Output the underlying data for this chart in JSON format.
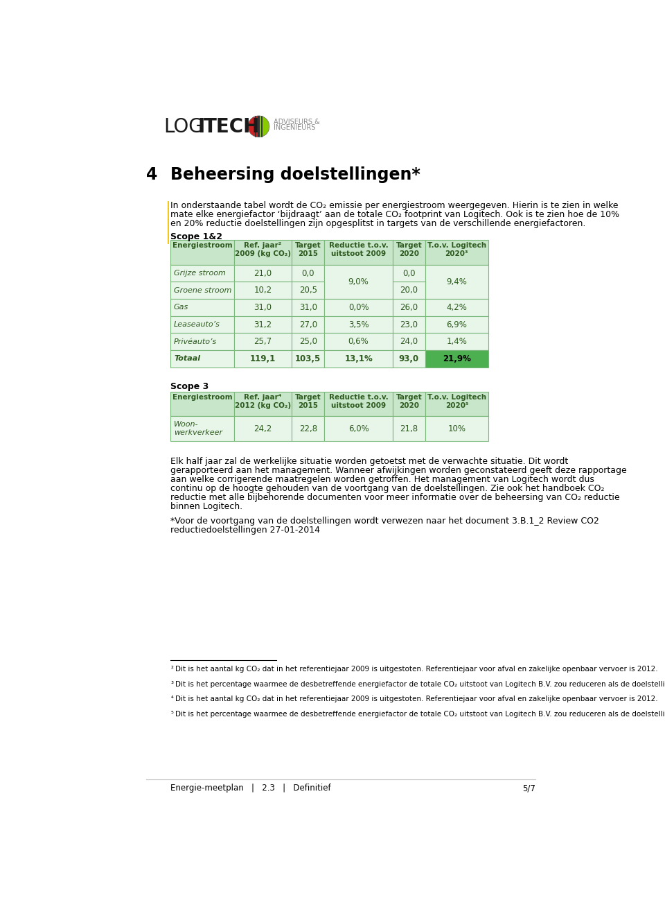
{
  "scope12_header": [
    "Energiestroom",
    "Ref. jaar²\n2009 (kg CO₂)",
    "Target\n2015",
    "Reductie t.o.v.\nuitstoot 2009",
    "Target\n2020",
    "T.o.v. Logitech\n2020³"
  ],
  "scope3_header": [
    "Energiestroom",
    "Ref. jaar⁴\n2012 (kg CO₂)",
    "Target\n2015",
    "Reductie t.o.v.\nuitstoot 2009",
    "Target\n2020",
    "T.o.v. Logitech\n2020⁵"
  ],
  "header_bg": "#c8e6c9",
  "cell_bg": "#e8f5e9",
  "totaal_last_cell_bg": "#4caf50",
  "border_color": "#7ab87a",
  "text_color": "#2d5a1e",
  "yellow_bar": "#f5c518",
  "body_text_color": "#1a1a1a"
}
